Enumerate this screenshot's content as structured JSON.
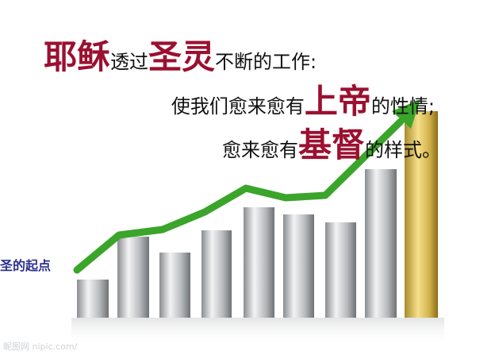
{
  "slide": {
    "lines": [
      [
        "耶稣",
        "透过",
        "圣灵",
        "不断的工作:"
      ],
      [
        "使我们愈来愈有",
        "上帝",
        "的性情;"
      ],
      [
        "愈来愈有",
        "基督",
        "的样式。"
      ]
    ],
    "start_label": "圣的起点",
    "watermark": "昵图网 nipic.com/"
  }
}
